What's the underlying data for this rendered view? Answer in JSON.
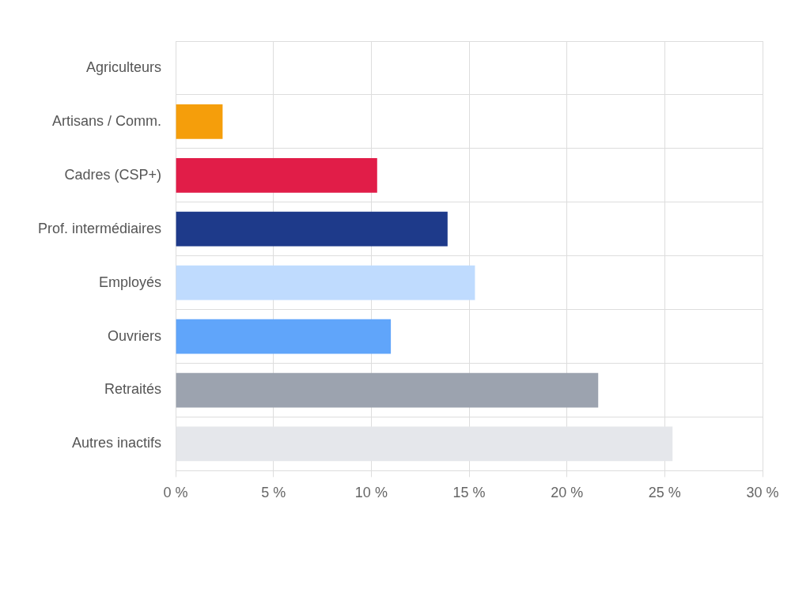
{
  "chart_data": {
    "type": "bar",
    "orientation": "horizontal",
    "categories": [
      "Agriculteurs",
      "Artisans / Comm.",
      "Cadres (CSP+)",
      "Prof. intermédiaires",
      "Employés",
      "Ouvriers",
      "Retraités",
      "Autres inactifs"
    ],
    "values": [
      0,
      2.4,
      10.3,
      13.9,
      15.3,
      11.0,
      21.6,
      25.4
    ],
    "colors": [
      "#9ca3af",
      "#f59e0b",
      "#e11d48",
      "#1e3a8a",
      "#bfdbfe",
      "#60a5fa",
      "#9ca3af",
      "#e5e7eb"
    ],
    "xlim": [
      0,
      30
    ],
    "xticks": [
      {
        "value": 0,
        "label": "0 %"
      },
      {
        "value": 5,
        "label": "5 %"
      },
      {
        "value": 10,
        "label": "10 %"
      },
      {
        "value": 15,
        "label": "15 %"
      },
      {
        "value": 20,
        "label": "20 %"
      },
      {
        "value": 25,
        "label": "25 %"
      },
      {
        "value": 30,
        "label": "30 %"
      }
    ],
    "grid": true,
    "legend": false
  }
}
